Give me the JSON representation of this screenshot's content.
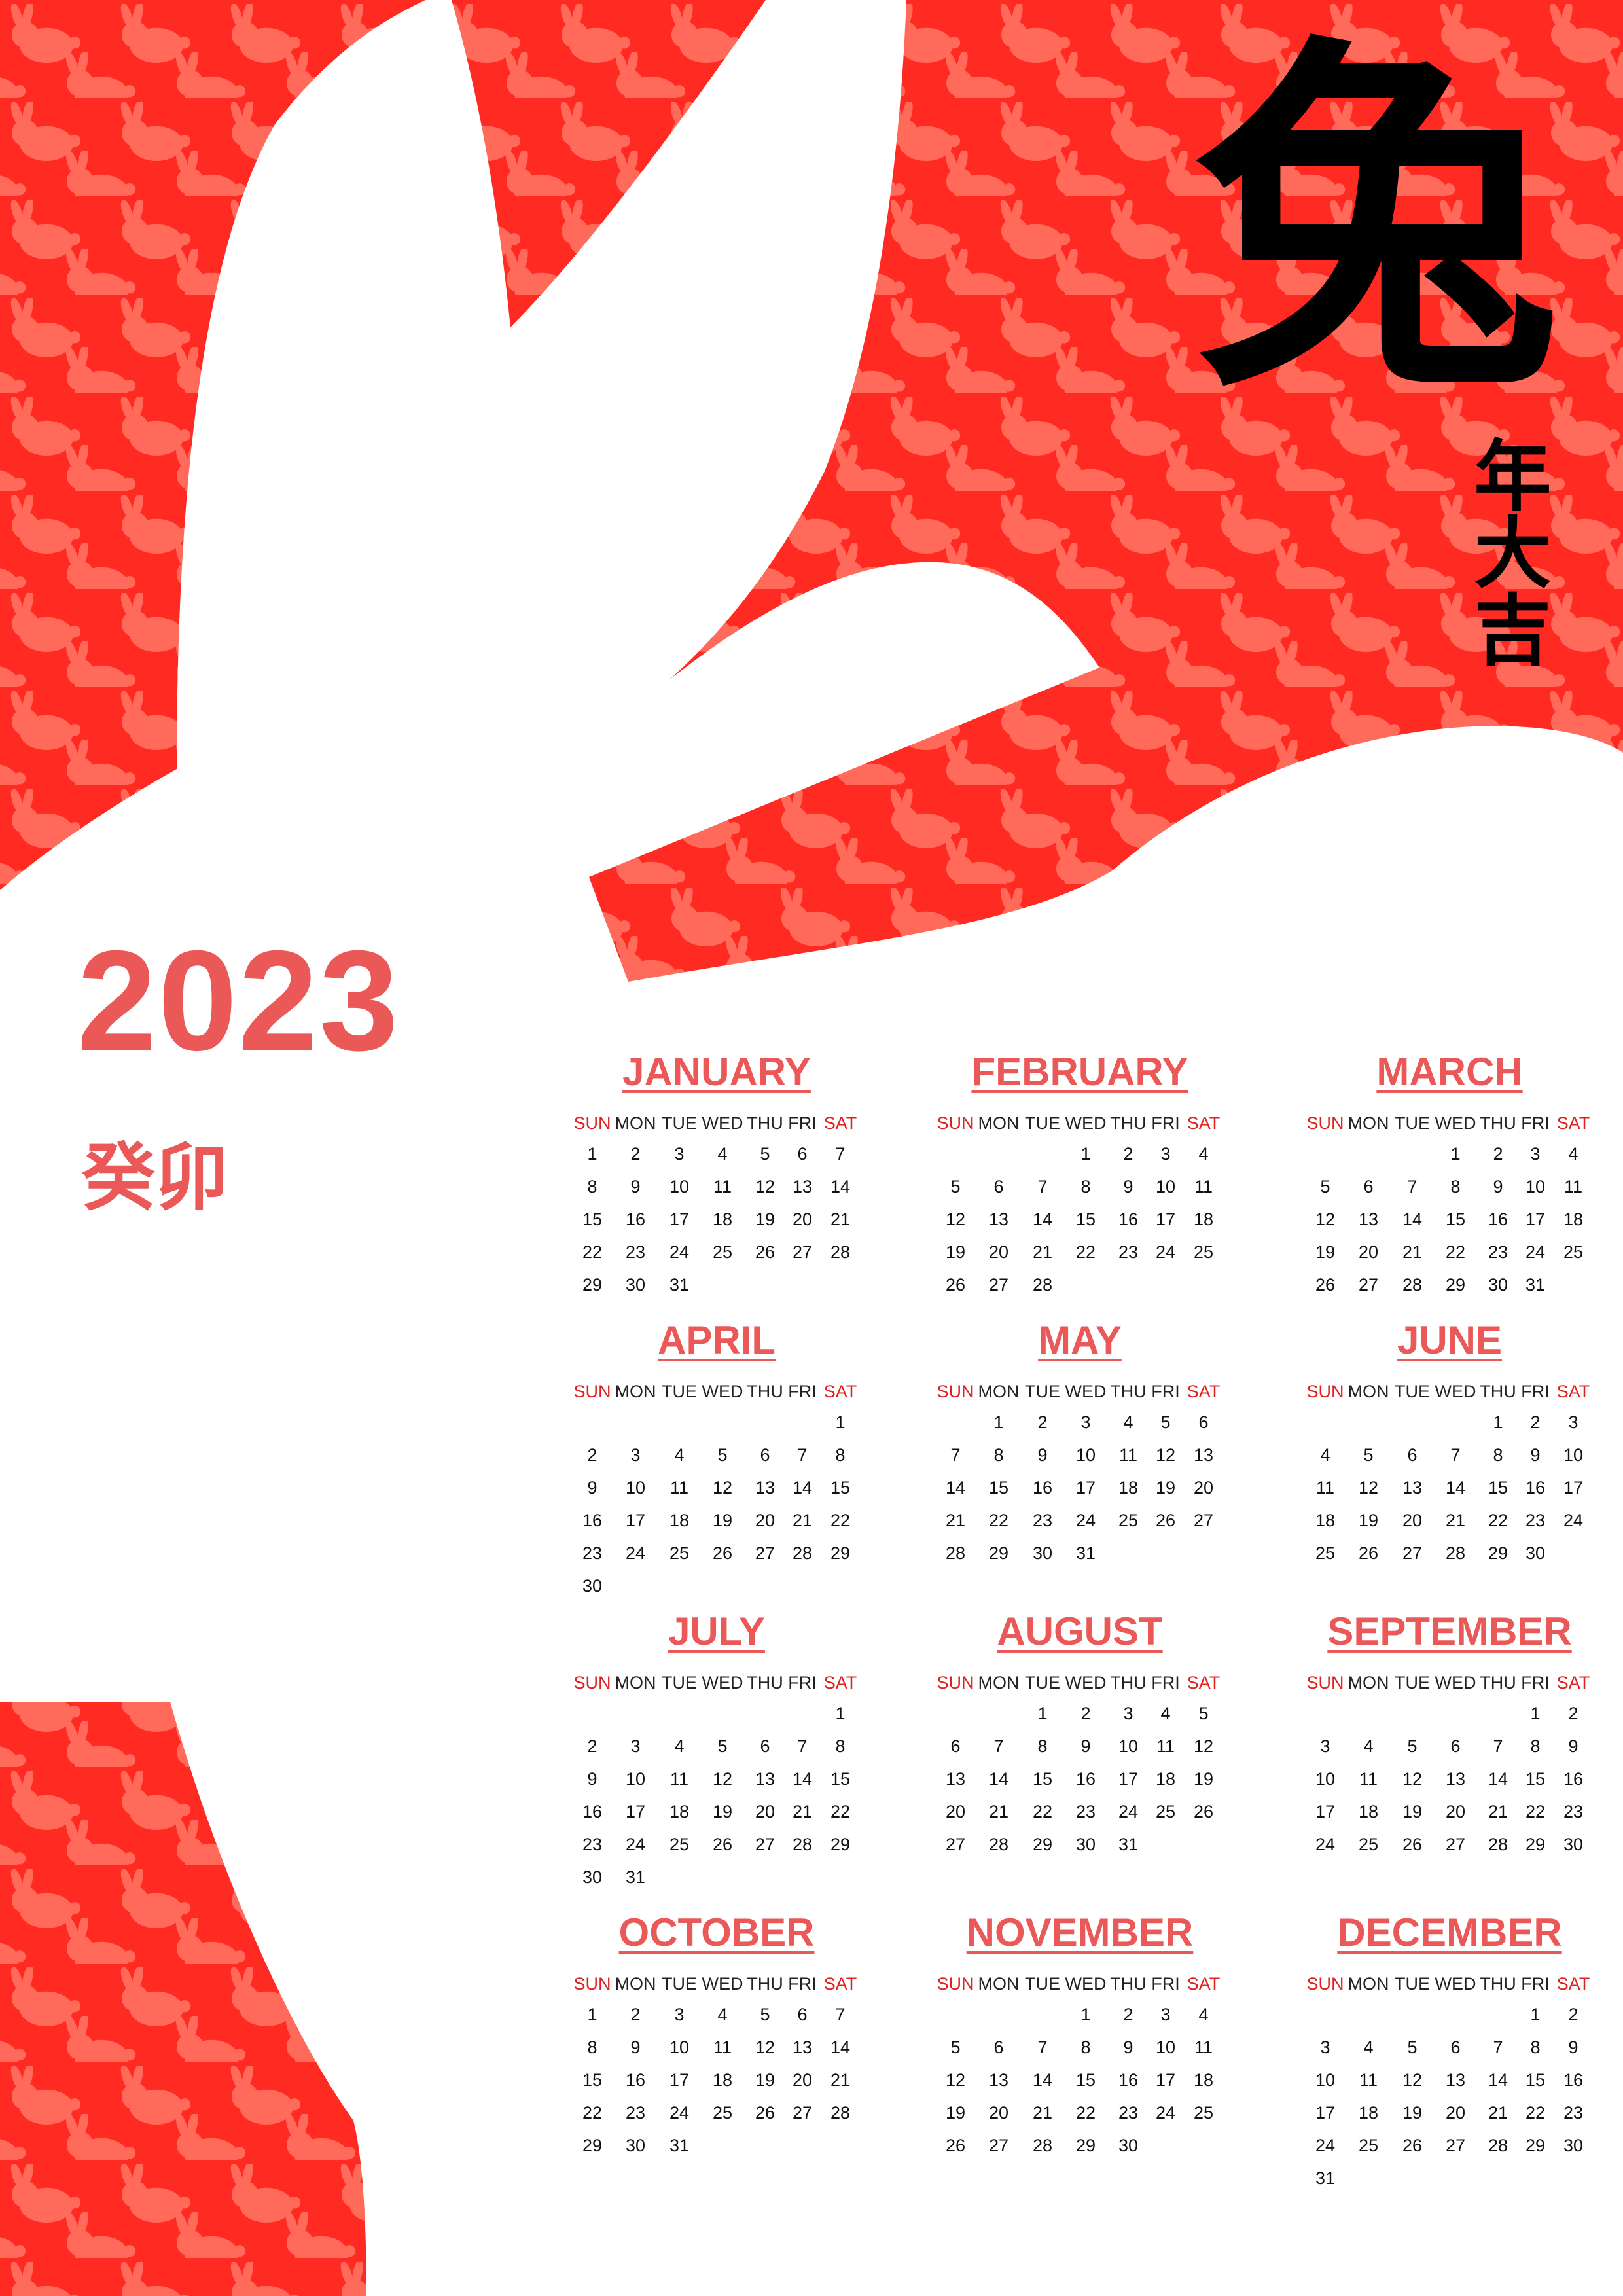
{
  "colors": {
    "accent": "#ea5858",
    "background_red": "#ff2a22",
    "rabbit_pattern": "#ff6a5a",
    "weekend_header": "#e02020"
  },
  "decor": {
    "bunny_pattern_icon": "rabbit-silhouette",
    "big_shape": "rabbit-head-silhouette"
  },
  "header": {
    "zodiac_char": "兔",
    "blessing": "年大吉"
  },
  "year": "2023",
  "ganzhi": "癸卯",
  "weekday_headers": [
    "SUN",
    "MON",
    "TUE",
    "WED",
    "THU",
    "FRI",
    "SAT"
  ],
  "months": [
    {
      "name": "JANUARY",
      "weeks": [
        [
          "1",
          "2",
          "3",
          "4",
          "5",
          "6",
          "7"
        ],
        [
          "8",
          "9",
          "10",
          "11",
          "12",
          "13",
          "14"
        ],
        [
          "15",
          "16",
          "17",
          "18",
          "19",
          "20",
          "21"
        ],
        [
          "22",
          "23",
          "24",
          "25",
          "26",
          "27",
          "28"
        ],
        [
          "29",
          "30",
          "31",
          "",
          "",
          "",
          ""
        ]
      ]
    },
    {
      "name": "FEBRUARY",
      "weeks": [
        [
          "",
          "",
          "",
          "1",
          "2",
          "3",
          "4"
        ],
        [
          "5",
          "6",
          "7",
          "8",
          "9",
          "10",
          "11"
        ],
        [
          "12",
          "13",
          "14",
          "15",
          "16",
          "17",
          "18"
        ],
        [
          "19",
          "20",
          "21",
          "22",
          "23",
          "24",
          "25"
        ],
        [
          "26",
          "27",
          "28",
          "",
          "",
          "",
          ""
        ]
      ]
    },
    {
      "name": "MARCH",
      "weeks": [
        [
          "",
          "",
          "",
          "1",
          "2",
          "3",
          "4"
        ],
        [
          "5",
          "6",
          "7",
          "8",
          "9",
          "10",
          "11"
        ],
        [
          "12",
          "13",
          "14",
          "15",
          "16",
          "17",
          "18"
        ],
        [
          "19",
          "20",
          "21",
          "22",
          "23",
          "24",
          "25"
        ],
        [
          "26",
          "27",
          "28",
          "29",
          "30",
          "31",
          ""
        ]
      ]
    },
    {
      "name": "APRIL",
      "weeks": [
        [
          "",
          "",
          "",
          "",
          "",
          "",
          "1"
        ],
        [
          "2",
          "3",
          "4",
          "5",
          "6",
          "7",
          "8"
        ],
        [
          "9",
          "10",
          "11",
          "12",
          "13",
          "14",
          "15"
        ],
        [
          "16",
          "17",
          "18",
          "19",
          "20",
          "21",
          "22"
        ],
        [
          "23",
          "24",
          "25",
          "26",
          "27",
          "28",
          "29"
        ],
        [
          "30",
          "",
          "",
          "",
          "",
          "",
          ""
        ]
      ]
    },
    {
      "name": "MAY",
      "weeks": [
        [
          "",
          "1",
          "2",
          "3",
          "4",
          "5",
          "6"
        ],
        [
          "7",
          "8",
          "9",
          "10",
          "11",
          "12",
          "13"
        ],
        [
          "14",
          "15",
          "16",
          "17",
          "18",
          "19",
          "20"
        ],
        [
          "21",
          "22",
          "23",
          "24",
          "25",
          "26",
          "27"
        ],
        [
          "28",
          "29",
          "30",
          "31",
          "",
          "",
          ""
        ]
      ]
    },
    {
      "name": "JUNE",
      "weeks": [
        [
          "",
          "",
          "",
          "",
          "1",
          "2",
          "3"
        ],
        [
          "4",
          "5",
          "6",
          "7",
          "8",
          "9",
          "10"
        ],
        [
          "11",
          "12",
          "13",
          "14",
          "15",
          "16",
          "17"
        ],
        [
          "18",
          "19",
          "20",
          "21",
          "22",
          "23",
          "24"
        ],
        [
          "25",
          "26",
          "27",
          "28",
          "29",
          "30",
          ""
        ]
      ]
    },
    {
      "name": "JULY",
      "weeks": [
        [
          "",
          "",
          "",
          "",
          "",
          "",
          "1"
        ],
        [
          "2",
          "3",
          "4",
          "5",
          "6",
          "7",
          "8"
        ],
        [
          "9",
          "10",
          "11",
          "12",
          "13",
          "14",
          "15"
        ],
        [
          "16",
          "17",
          "18",
          "19",
          "20",
          "21",
          "22"
        ],
        [
          "23",
          "24",
          "25",
          "26",
          "27",
          "28",
          "29"
        ],
        [
          "30",
          "31",
          "",
          "",
          "",
          "",
          ""
        ]
      ]
    },
    {
      "name": "AUGUST",
      "weeks": [
        [
          "",
          "",
          "1",
          "2",
          "3",
          "4",
          "5"
        ],
        [
          "6",
          "7",
          "8",
          "9",
          "10",
          "11",
          "12"
        ],
        [
          "13",
          "14",
          "15",
          "16",
          "17",
          "18",
          "19"
        ],
        [
          "20",
          "21",
          "22",
          "23",
          "24",
          "25",
          "26"
        ],
        [
          "27",
          "28",
          "29",
          "30",
          "31",
          "",
          ""
        ]
      ]
    },
    {
      "name": "SEPTEMBER",
      "weeks": [
        [
          "",
          "",
          "",
          "",
          "",
          "1",
          "2"
        ],
        [
          "3",
          "4",
          "5",
          "6",
          "7",
          "8",
          "9"
        ],
        [
          "10",
          "11",
          "12",
          "13",
          "14",
          "15",
          "16"
        ],
        [
          "17",
          "18",
          "19",
          "20",
          "21",
          "22",
          "23"
        ],
        [
          "24",
          "25",
          "26",
          "27",
          "28",
          "29",
          "30"
        ]
      ]
    },
    {
      "name": "OCTOBER",
      "weeks": [
        [
          "1",
          "2",
          "3",
          "4",
          "5",
          "6",
          "7"
        ],
        [
          "8",
          "9",
          "10",
          "11",
          "12",
          "13",
          "14"
        ],
        [
          "15",
          "16",
          "17",
          "18",
          "19",
          "20",
          "21"
        ],
        [
          "22",
          "23",
          "24",
          "25",
          "26",
          "27",
          "28"
        ],
        [
          "29",
          "30",
          "31",
          "",
          "",
          "",
          ""
        ]
      ]
    },
    {
      "name": "NOVEMBER",
      "weeks": [
        [
          "",
          "",
          "",
          "1",
          "2",
          "3",
          "4"
        ],
        [
          "5",
          "6",
          "7",
          "8",
          "9",
          "10",
          "11"
        ],
        [
          "12",
          "13",
          "14",
          "15",
          "16",
          "17",
          "18"
        ],
        [
          "19",
          "20",
          "21",
          "22",
          "23",
          "24",
          "25"
        ],
        [
          "26",
          "27",
          "28",
          "29",
          "30",
          "",
          ""
        ]
      ]
    },
    {
      "name": "DECEMBER",
      "weeks": [
        [
          "",
          "",
          "",
          "",
          "",
          "1",
          "2"
        ],
        [
          "3",
          "4",
          "5",
          "6",
          "7",
          "8",
          "9"
        ],
        [
          "10",
          "11",
          "12",
          "13",
          "14",
          "15",
          "16"
        ],
        [
          "17",
          "18",
          "19",
          "20",
          "21",
          "22",
          "23"
        ],
        [
          "24",
          "25",
          "26",
          "27",
          "28",
          "29",
          "30"
        ],
        [
          "31",
          "",
          "",
          "",
          "",
          "",
          ""
        ]
      ]
    }
  ]
}
